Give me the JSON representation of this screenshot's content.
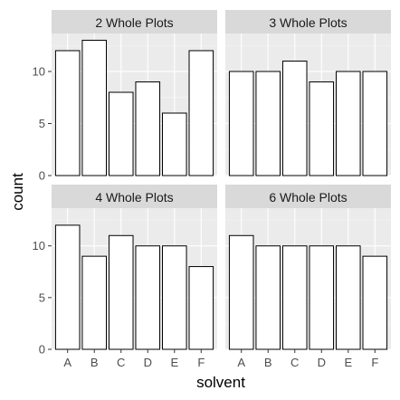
{
  "chart_data": {
    "type": "bar",
    "xlabel": "solvent",
    "ylabel": "count",
    "categories": [
      "A",
      "B",
      "C",
      "D",
      "E",
      "F"
    ],
    "ylim": [
      0,
      13.65
    ],
    "y_ticks": [
      0,
      5,
      10
    ],
    "grid": true,
    "facets": [
      {
        "title": "2 Whole Plots",
        "values": [
          12,
          13,
          8,
          9,
          6,
          12
        ]
      },
      {
        "title": "3 Whole Plots",
        "values": [
          10,
          10,
          11,
          9,
          10,
          10
        ]
      },
      {
        "title": "4 Whole Plots",
        "values": [
          12,
          9,
          11,
          10,
          10,
          8
        ]
      },
      {
        "title": "6 Whole Plots",
        "values": [
          11,
          10,
          10,
          10,
          10,
          9
        ]
      }
    ]
  },
  "colors": {
    "panel_background": "#ebebeb",
    "strip_background": "#d9d9d9",
    "grid_major": "#ffffff",
    "grid_minor": "#f5f5f5",
    "bar_fill": "#ffffff",
    "bar_stroke": "#000000"
  }
}
